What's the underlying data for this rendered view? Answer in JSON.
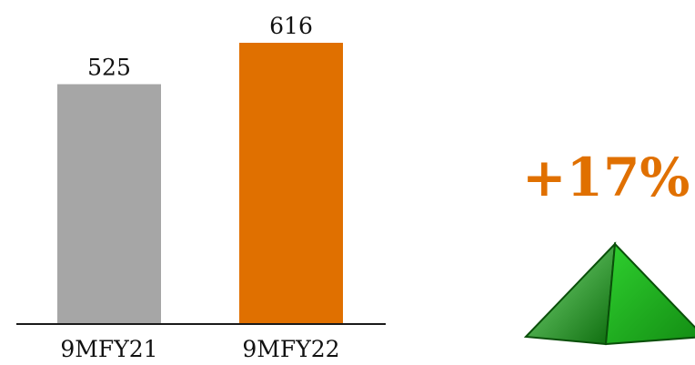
{
  "chart_data": {
    "type": "bar",
    "categories": [
      "9MFY21",
      "9MFY22"
    ],
    "values": [
      525,
      616
    ],
    "data_labels": [
      "525",
      "616"
    ],
    "ylim": [
      0,
      616
    ],
    "grid": false,
    "legend": "none",
    "colors": [
      "#A6A6A6",
      "#E07000"
    ]
  },
  "summary": {
    "change_label": "+17%",
    "change_color": "#E07000",
    "trend_icon": "up-triangle-icon",
    "trend_color": "#1F9E1F"
  }
}
